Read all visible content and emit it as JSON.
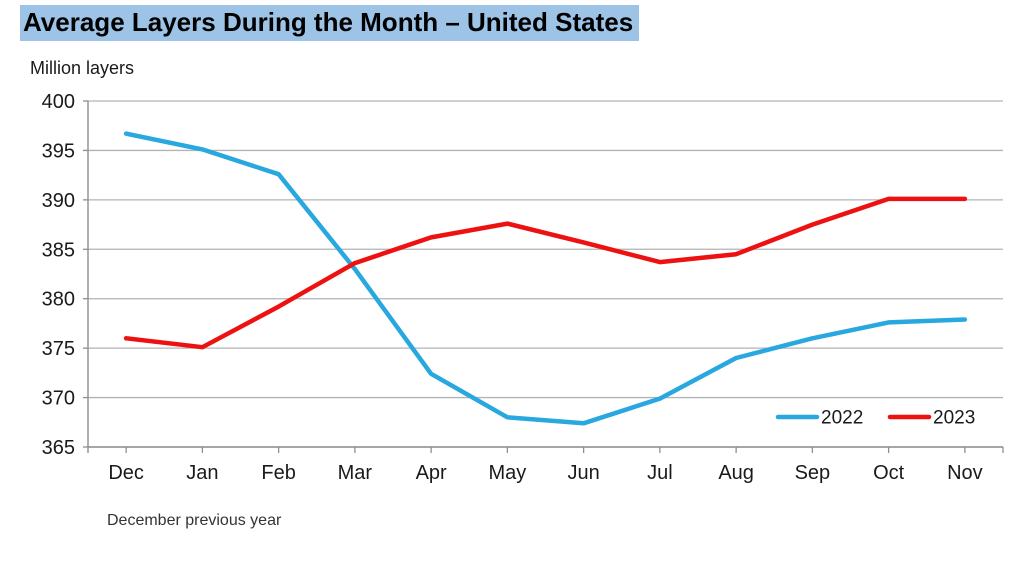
{
  "page": {
    "title": "Average Layers During the Month – United States",
    "y_axis_unit": "Million layers",
    "footnote": "December previous year"
  },
  "colors": {
    "title_highlight": "#9dc3e6",
    "grid": "#b3b3b3",
    "axis": "#8f8f8f",
    "tick": "#8f8f8f",
    "label_text": "#1a1a1a",
    "series_2022": "#29a8e0",
    "series_2023": "#ee1111"
  },
  "chart_data": {
    "type": "line",
    "title": "Average Layers During the Month – United States",
    "ylabel": "Million layers",
    "xlabel": "",
    "x_note": "December previous year",
    "categories": [
      "Dec",
      "Jan",
      "Feb",
      "Mar",
      "Apr",
      "May",
      "Jun",
      "Jul",
      "Aug",
      "Sep",
      "Oct",
      "Nov"
    ],
    "series": [
      {
        "name": "2022",
        "color": "#29a8e0",
        "values": [
          396.7,
          395.1,
          392.6,
          383.0,
          372.4,
          368.0,
          367.4,
          369.9,
          374.0,
          376.0,
          377.6,
          377.9
        ]
      },
      {
        "name": "2023",
        "color": "#ee1111",
        "values": [
          376.0,
          375.1,
          379.2,
          383.6,
          386.2,
          387.6,
          385.7,
          383.7,
          384.5,
          387.5,
          390.1,
          390.1
        ]
      }
    ],
    "ylim": [
      365,
      400
    ],
    "y_ticks": [
      365,
      370,
      375,
      380,
      385,
      390,
      395,
      400
    ],
    "grid": "horizontal",
    "legend_position": "inside-bottom-right",
    "legend": [
      "2022",
      "2023"
    ]
  }
}
